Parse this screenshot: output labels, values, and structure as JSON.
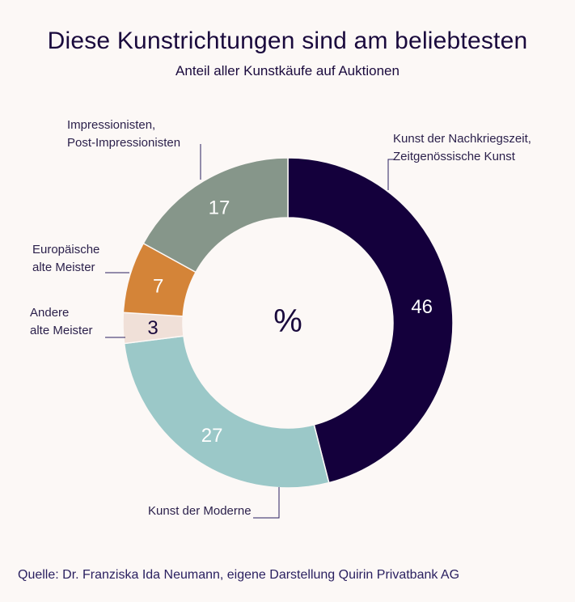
{
  "chart_data": {
    "type": "pie",
    "title": "Diese Kunstrichtungen sind am beliebtesten",
    "subtitle": "Anteil aller Kunstkäufe auf Auktionen",
    "center_label": "%",
    "source": "Quelle: Dr. Franziska Ida Neumann, eigene Darstellung Quirin Privatbank AG",
    "slices": [
      {
        "label_lines": [
          "Kunst der Nachkriegszeit,",
          "Zeitgenössische Kunst"
        ],
        "value": 46,
        "color": "#14003c",
        "text_color": "#ffffff"
      },
      {
        "label_lines": [
          "Kunst der Moderne"
        ],
        "value": 27,
        "color": "#9bc8c8",
        "text_color": "#ffffff"
      },
      {
        "label_lines": [
          "Andere",
          "alte Meister"
        ],
        "value": 3,
        "color": "#f0e0d8",
        "text_color": "#1a0a3d"
      },
      {
        "label_lines": [
          "Europäische",
          "alte Meister"
        ],
        "value": 7,
        "color": "#d48438",
        "text_color": "#ffffff"
      },
      {
        "label_lines": [
          "Impressionisten,",
          "Post-Impressionisten"
        ],
        "value": 17,
        "color": "#86968a",
        "text_color": "#ffffff"
      }
    ]
  }
}
